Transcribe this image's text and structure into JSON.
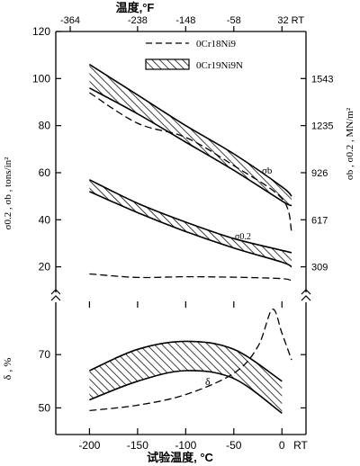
{
  "chart_data": {
    "type": "area",
    "top_axis": {
      "label": "温度,°F",
      "ticks": [
        "-364",
        "-238",
        "-148",
        "-58",
        "32 RT"
      ],
      "tick_c": [
        -220,
        -150,
        -100,
        -50,
        0
      ]
    },
    "upper_panel": {
      "ylabel_left": "σ0.2 , σb , tons/in²",
      "ylabel_right": "σb , σ0.2 , MN/m²",
      "ylim": [
        8,
        120
      ],
      "yticks_left": [
        20,
        40,
        60,
        80,
        100,
        120
      ],
      "yticks_right": [
        "309",
        "617",
        "926",
        "1235",
        "1543"
      ],
      "yticks_right_pos": [
        20,
        40,
        60,
        80,
        100
      ],
      "legend": {
        "dashed": "0Cr18Ni9",
        "hatched": "0Cr19Ni9N",
        "placement": "top-right"
      },
      "series": [
        {
          "name": "0Cr19Ni9N",
          "annotation": "σb",
          "style": "hatched-band",
          "x": [
            -200,
            -150,
            -100,
            -50,
            0,
            10
          ],
          "upper": [
            106,
            93,
            80,
            68,
            54,
            50
          ],
          "lower": [
            96,
            85,
            73,
            61,
            48,
            46
          ]
        },
        {
          "name": "0Cr19Ni9N",
          "annotation": "σ0.2",
          "style": "hatched-band",
          "x": [
            -200,
            -150,
            -100,
            -50,
            0,
            10
          ],
          "upper": [
            57,
            47,
            39,
            32,
            27,
            26
          ],
          "lower": [
            52,
            43,
            35,
            28,
            22,
            20
          ]
        },
        {
          "name": "0Cr18Ni9",
          "style": "dashed",
          "x": [
            -200,
            -150,
            -100,
            -50,
            0,
            10
          ],
          "y": [
            94,
            81,
            75,
            63,
            49,
            35
          ]
        },
        {
          "name": "0Cr18Ni9",
          "style": "dashed",
          "x": [
            -200,
            -150,
            -100,
            -50,
            0,
            10
          ],
          "y": [
            17,
            15.5,
            15.8,
            15.6,
            15,
            14
          ]
        }
      ]
    },
    "lower_panel": {
      "ylabel": "δ , %",
      "ylim": [
        40,
        90
      ],
      "yticks": [
        50,
        70
      ],
      "annotation": "δ",
      "series": [
        {
          "name": "0Cr19Ni9N",
          "style": "hatched-band",
          "x": [
            -200,
            -150,
            -100,
            -50,
            0
          ],
          "upper": [
            64,
            72,
            75,
            72,
            60
          ],
          "lower": [
            53,
            60,
            64,
            61,
            48
          ]
        },
        {
          "name": "0Cr18Ni9",
          "style": "dashed",
          "x": [
            -200,
            -150,
            -100,
            -50,
            -25,
            -10,
            0,
            10
          ],
          "y": [
            49,
            51,
            55,
            63,
            73,
            87,
            78,
            68
          ]
        }
      ]
    },
    "xlabel": "试验温度, °C",
    "xlim": [
      -235,
      25
    ],
    "xticks": [
      -200,
      -150,
      -100,
      -50,
      0
    ],
    "xtick_rt": "RT"
  }
}
